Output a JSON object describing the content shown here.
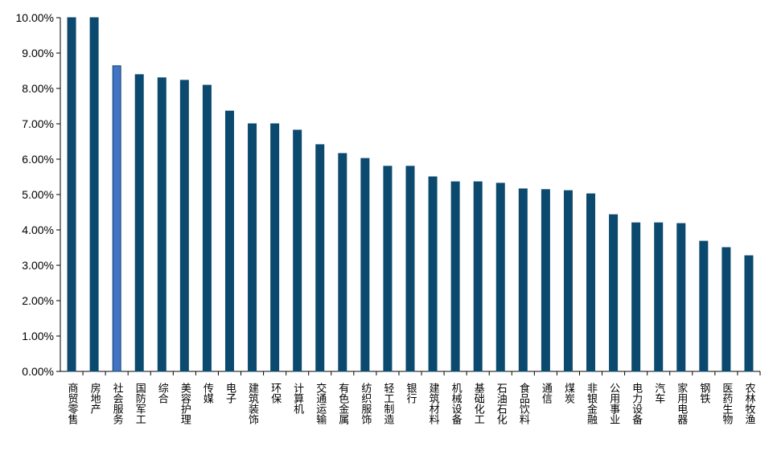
{
  "chart_data": {
    "type": "bar",
    "categories": [
      "商贸零售",
      "房地产",
      "社会服务",
      "国防军工",
      "综合",
      "美容护理",
      "传媒",
      "电子",
      "建筑装饰",
      "环保",
      "计算机",
      "交通运输",
      "有色金属",
      "纺织服饰",
      "轻工制造",
      "银行",
      "建筑材料",
      "机械设备",
      "基础化工",
      "石油石化",
      "食品饮料",
      "通信",
      "煤炭",
      "非银金融",
      "公用事业",
      "电力设备",
      "汽车",
      "家用电器",
      "钢铁",
      "医药生物",
      "农林牧渔"
    ],
    "values": [
      10.0,
      10.0,
      8.64,
      8.39,
      8.3,
      8.23,
      8.09,
      7.36,
      7.0,
      7.0,
      6.82,
      6.41,
      6.16,
      6.02,
      5.8,
      5.8,
      5.5,
      5.36,
      5.36,
      5.32,
      5.16,
      5.14,
      5.11,
      5.02,
      4.43,
      4.2,
      4.2,
      4.18,
      3.68,
      3.5,
      3.27
    ],
    "colors": [
      "#0b4a6e",
      "#0b4a6e",
      "#4472c4",
      "#0b4a6e",
      "#0b4a6e",
      "#0b4a6e",
      "#0b4a6e",
      "#0b4a6e",
      "#0b4a6e",
      "#0b4a6e",
      "#0b4a6e",
      "#0b4a6e",
      "#0b4a6e",
      "#0b4a6e",
      "#0b4a6e",
      "#0b4a6e",
      "#0b4a6e",
      "#0b4a6e",
      "#0b4a6e",
      "#0b4a6e",
      "#0b4a6e",
      "#0b4a6e",
      "#0b4a6e",
      "#0b4a6e",
      "#0b4a6e",
      "#0b4a6e",
      "#0b4a6e",
      "#0b4a6e",
      "#0b4a6e",
      "#0b4a6e",
      "#0b4a6e"
    ],
    "ylim": [
      0,
      10
    ],
    "yticks": [
      {
        "value": 0,
        "label": "0.00%"
      },
      {
        "value": 1,
        "label": "1.00%"
      },
      {
        "value": 2,
        "label": "2.00%"
      },
      {
        "value": 3,
        "label": "3.00%"
      },
      {
        "value": 4,
        "label": "4.00%"
      },
      {
        "value": 5,
        "label": "5.00%"
      },
      {
        "value": 6,
        "label": "6.00%"
      },
      {
        "value": 7,
        "label": "7.00%"
      },
      {
        "value": 8,
        "label": "8.00%"
      },
      {
        "value": 9,
        "label": "9.00%"
      },
      {
        "value": 10,
        "label": "10.00%"
      }
    ],
    "grid": false
  }
}
